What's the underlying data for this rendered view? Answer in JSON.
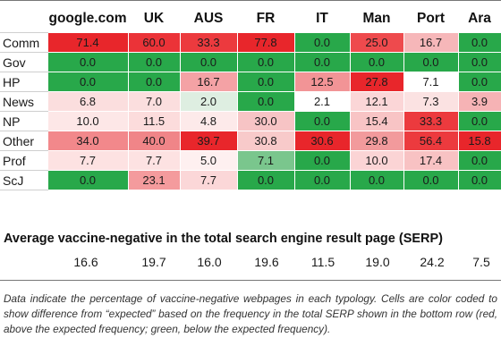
{
  "columns": [
    "google.com",
    "UK",
    "AUS",
    "FR",
    "IT",
    "Man",
    "Port",
    "Ara"
  ],
  "rows": [
    {
      "label": "Comm",
      "cells": [
        {
          "v": "71.4",
          "c": "#e8262b"
        },
        {
          "v": "60.0",
          "c": "#eb3338"
        },
        {
          "v": "33.3",
          "c": "#ec3a3e"
        },
        {
          "v": "77.8",
          "c": "#e8262b"
        },
        {
          "v": "0.0",
          "c": "#28a84a"
        },
        {
          "v": "25.0",
          "c": "#ee4a4d"
        },
        {
          "v": "16.7",
          "c": "#f6b7b9"
        },
        {
          "v": "0.0",
          "c": "#28a84a"
        }
      ]
    },
    {
      "label": "Gov",
      "cells": [
        {
          "v": "0.0",
          "c": "#28a84a"
        },
        {
          "v": "0.0",
          "c": "#28a84a"
        },
        {
          "v": "0.0",
          "c": "#28a84a"
        },
        {
          "v": "0.0",
          "c": "#28a84a"
        },
        {
          "v": "0.0",
          "c": "#28a84a"
        },
        {
          "v": "0.0",
          "c": "#28a84a"
        },
        {
          "v": "0.0",
          "c": "#28a84a"
        },
        {
          "v": "0.0",
          "c": "#28a84a"
        }
      ]
    },
    {
      "label": "HP",
      "cells": [
        {
          "v": "0.0",
          "c": "#28a84a"
        },
        {
          "v": "0.0",
          "c": "#28a84a"
        },
        {
          "v": "16.7",
          "c": "#f4a2a5"
        },
        {
          "v": "0.0",
          "c": "#28a84a"
        },
        {
          "v": "12.5",
          "c": "#f29496"
        },
        {
          "v": "27.8",
          "c": "#e8262b"
        },
        {
          "v": "7.1",
          "c": "#ffffff"
        },
        {
          "v": "0.0",
          "c": "#28a84a"
        }
      ]
    },
    {
      "label": "News",
      "cells": [
        {
          "v": "6.8",
          "c": "#fbdede"
        },
        {
          "v": "7.0",
          "c": "#fbdede"
        },
        {
          "v": "2.0",
          "c": "#deeee1"
        },
        {
          "v": "0.0",
          "c": "#28a84a"
        },
        {
          "v": "2.1",
          "c": "#ffffff"
        },
        {
          "v": "12.1",
          "c": "#fbd6d7"
        },
        {
          "v": "7.3",
          "c": "#fbe2e2"
        },
        {
          "v": "3.9",
          "c": "#f6b3b5"
        }
      ]
    },
    {
      "label": "NP",
      "cells": [
        {
          "v": "10.0",
          "c": "#fde7e7"
        },
        {
          "v": "11.5",
          "c": "#fcdcdc"
        },
        {
          "v": "4.8",
          "c": "#fdeaea"
        },
        {
          "v": "30.0",
          "c": "#f7c4c5"
        },
        {
          "v": "0.0",
          "c": "#28a84a"
        },
        {
          "v": "15.4",
          "c": "#f8c4c5"
        },
        {
          "v": "33.3",
          "c": "#ec3a3e"
        },
        {
          "v": "0.0",
          "c": "#28a84a"
        }
      ]
    },
    {
      "label": "Other",
      "cells": [
        {
          "v": "34.0",
          "c": "#f2888b"
        },
        {
          "v": "40.0",
          "c": "#f08588"
        },
        {
          "v": "39.7",
          "c": "#e8262b"
        },
        {
          "v": "30.8",
          "c": "#f8caca"
        },
        {
          "v": "30.6",
          "c": "#e8262b"
        },
        {
          "v": "29.8",
          "c": "#f29a9c"
        },
        {
          "v": "56.4",
          "c": "#ec3a3e"
        },
        {
          "v": "15.8",
          "c": "#e8262b"
        }
      ]
    },
    {
      "label": "Prof",
      "cells": [
        {
          "v": "7.7",
          "c": "#fde2e2"
        },
        {
          "v": "7.7",
          "c": "#fde2e2"
        },
        {
          "v": "5.0",
          "c": "#fef0f0"
        },
        {
          "v": "7.1",
          "c": "#7ac68d"
        },
        {
          "v": "0.0",
          "c": "#28a84a"
        },
        {
          "v": "10.0",
          "c": "#fbd4d5"
        },
        {
          "v": "17.4",
          "c": "#f8c2c3"
        },
        {
          "v": "0.0",
          "c": "#28a84a"
        }
      ]
    },
    {
      "label": "ScJ",
      "cells": [
        {
          "v": "0.0",
          "c": "#28a84a"
        },
        {
          "v": "23.1",
          "c": "#f49b9d"
        },
        {
          "v": "7.7",
          "c": "#fbd7d8"
        },
        {
          "v": "0.0",
          "c": "#28a84a"
        },
        {
          "v": "0.0",
          "c": "#28a84a"
        },
        {
          "v": "0.0",
          "c": "#28a84a"
        },
        {
          "v": "0.0",
          "c": "#28a84a"
        },
        {
          "v": "0.0",
          "c": "#28a84a"
        }
      ]
    }
  ],
  "serp": {
    "title": "Average vaccine-negative in the total search engine result page (SERP)",
    "values": [
      "16.6",
      "19.7",
      "16.0",
      "19.6",
      "11.5",
      "19.0",
      "24.2",
      "7.5"
    ]
  },
  "caption": "Data indicate the percentage of vaccine-negative webpages in each typology. Cells are color coded to show difference from “expected” based on the frequency in the total SERP shown in the bottom row (red, above the expected frequency; green, below the expected frequency)."
}
